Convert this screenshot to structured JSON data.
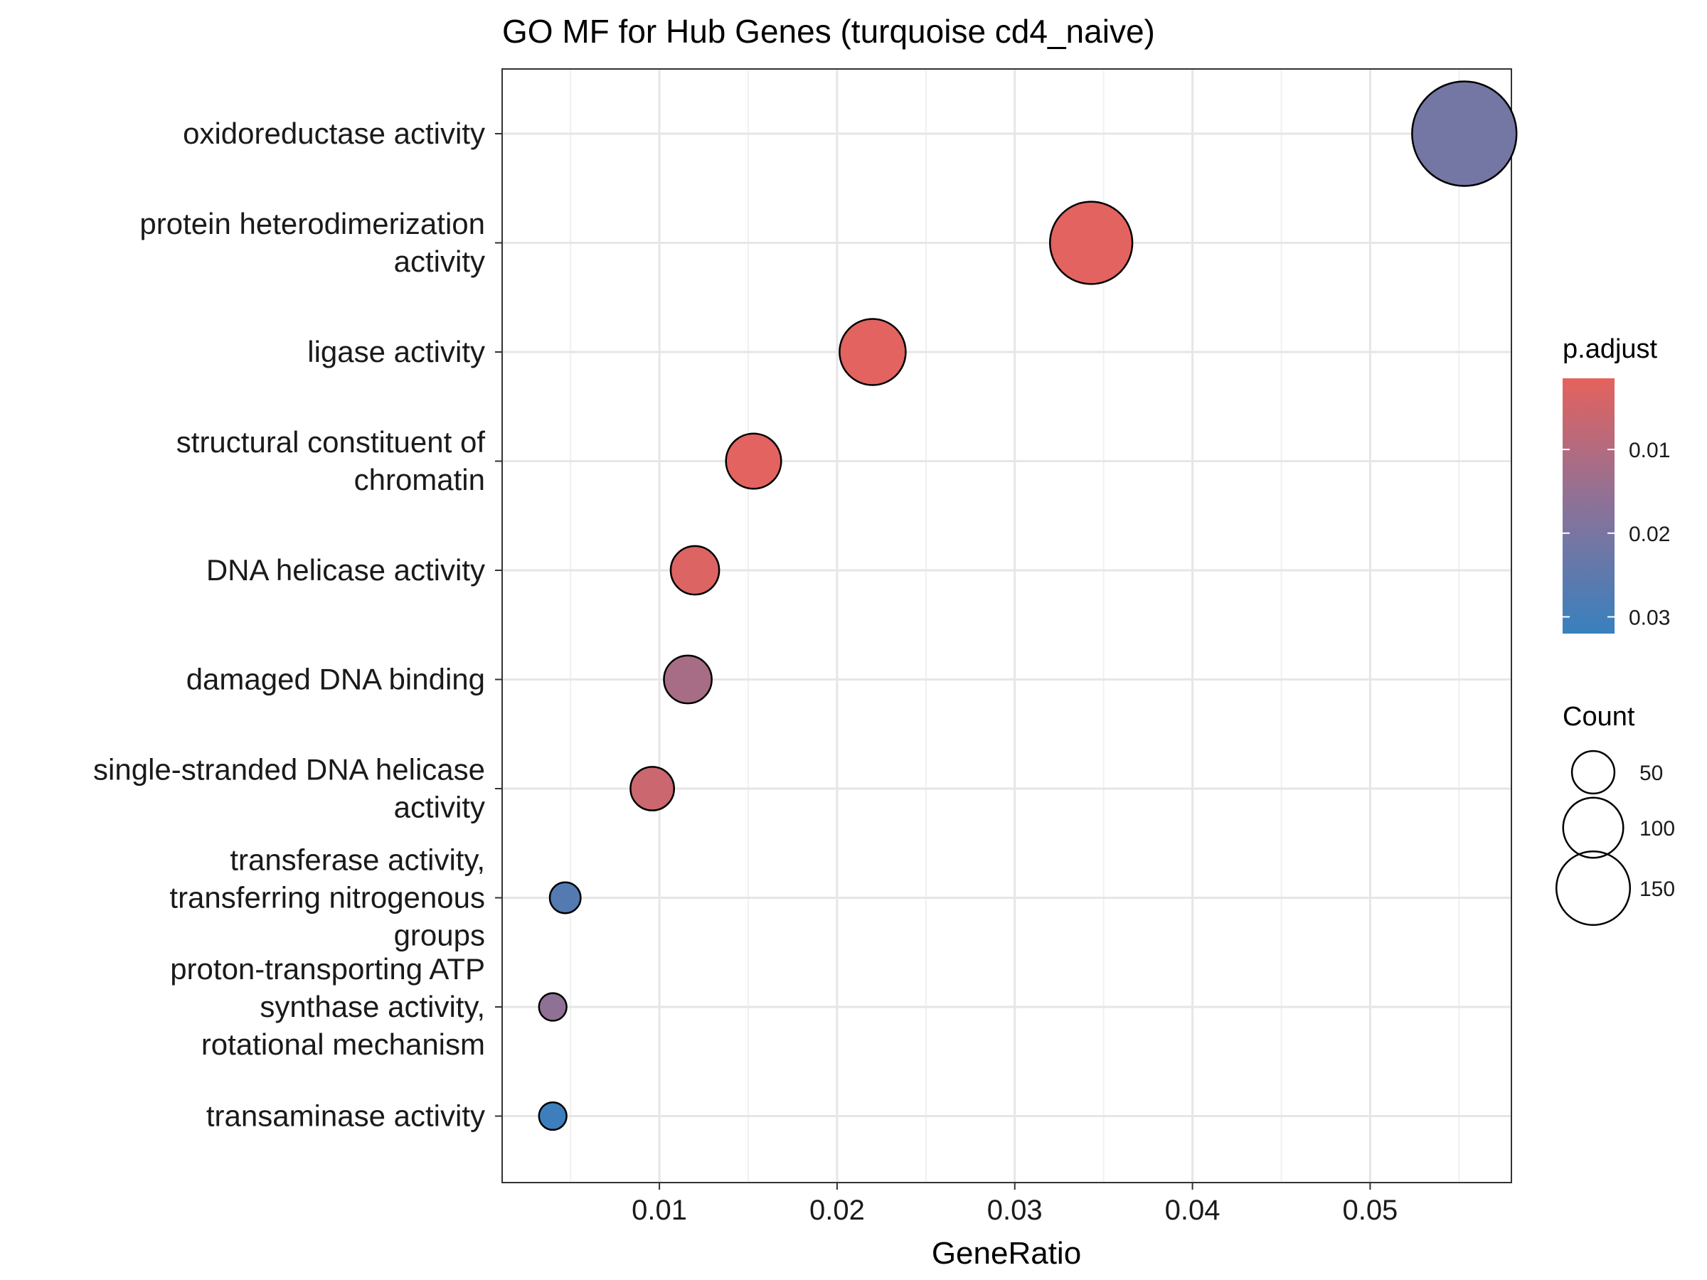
{
  "chart_data": {
    "type": "scatter",
    "title": "GO MF for Hub Genes (turquoise cd4_naive)",
    "xlabel": "GeneRatio",
    "ylabel": "",
    "xlim": [
      0.00115,
      0.05795
    ],
    "x_ticks": [
      0.01,
      0.02,
      0.03,
      0.04,
      0.05
    ],
    "x_tick_labels": [
      "0.01",
      "0.02",
      "0.03",
      "0.04",
      "0.05"
    ],
    "grid": true,
    "categories": [
      [
        "oxidoreductase activity"
      ],
      [
        "protein heterodimerization",
        "activity"
      ],
      [
        "ligase activity"
      ],
      [
        "structural constituent of",
        "chromatin"
      ],
      [
        "DNA helicase activity"
      ],
      [
        "damaged DNA binding"
      ],
      [
        "single-stranded DNA helicase",
        "activity"
      ],
      [
        "transferase activity,",
        "transferring nitrogenous",
        "groups"
      ],
      [
        "proton-transporting ATP",
        "synthase activity,",
        "rotational mechanism"
      ],
      [
        "transaminase activity"
      ]
    ],
    "points": [
      {
        "x": 0.0553,
        "count": 172,
        "p_adjust": 0.021
      },
      {
        "x": 0.0343,
        "count": 107,
        "p_adjust": 0.002
      },
      {
        "x": 0.022,
        "count": 69,
        "p_adjust": 0.002
      },
      {
        "x": 0.0153,
        "count": 48,
        "p_adjust": 0.002
      },
      {
        "x": 0.012,
        "count": 37,
        "p_adjust": 0.003
      },
      {
        "x": 0.0116,
        "count": 36,
        "p_adjust": 0.012
      },
      {
        "x": 0.0096,
        "count": 30,
        "p_adjust": 0.006
      },
      {
        "x": 0.0047,
        "count": 15,
        "p_adjust": 0.027
      },
      {
        "x": 0.004,
        "count": 12,
        "p_adjust": 0.016
      },
      {
        "x": 0.004,
        "count": 12,
        "p_adjust": 0.031
      }
    ],
    "color_legend": {
      "title": "p.adjust",
      "range": [
        0.0015,
        0.032
      ],
      "ticks": [
        0.01,
        0.02,
        0.03
      ],
      "tick_labels": [
        "0.01",
        "0.02",
        "0.03"
      ],
      "low_color": "#E5625D",
      "mid_color": "#8B7299",
      "high_color": "#3880BE"
    },
    "size_legend": {
      "title": "Count",
      "values": [
        50,
        100,
        150
      ],
      "labels": [
        "50",
        "100",
        "150"
      ]
    },
    "legend_position": "right"
  }
}
